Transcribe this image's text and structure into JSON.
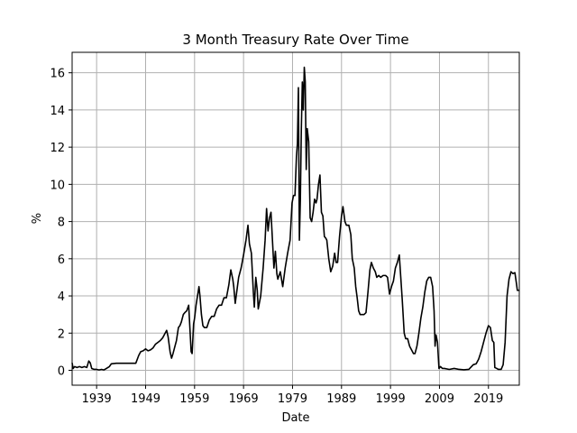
{
  "chart_data": {
    "type": "line",
    "title": "3 Month Treasury Rate Over Time",
    "xlabel": "Date",
    "ylabel": "%",
    "xlim": [
      1934,
      2025.3
    ],
    "ylim": [
      -0.8,
      17.1
    ],
    "x_ticks": [
      1939,
      1949,
      1959,
      1969,
      1979,
      1989,
      1999,
      2009,
      2019
    ],
    "y_ticks": [
      0,
      2,
      4,
      6,
      8,
      10,
      12,
      14,
      16
    ],
    "grid": true,
    "legend": "none",
    "line_color": "#000000",
    "series": [
      {
        "values": [
          [
            1934.0,
            0.4
          ],
          [
            1934.2,
            0.1
          ],
          [
            1934.5,
            0.2
          ],
          [
            1935.0,
            0.15
          ],
          [
            1935.5,
            0.2
          ],
          [
            1936.0,
            0.15
          ],
          [
            1936.5,
            0.2
          ],
          [
            1937.0,
            0.15
          ],
          [
            1937.4,
            0.5
          ],
          [
            1937.7,
            0.4
          ],
          [
            1938.0,
            0.1
          ],
          [
            1938.5,
            0.05
          ],
          [
            1939.0,
            0.05
          ],
          [
            1939.5,
            0.02
          ],
          [
            1940.0,
            0.05
          ],
          [
            1940.5,
            0.02
          ],
          [
            1941.0,
            0.1
          ],
          [
            1941.6,
            0.2
          ],
          [
            1942.0,
            0.35
          ],
          [
            1943.0,
            0.38
          ],
          [
            1944.0,
            0.38
          ],
          [
            1945.0,
            0.38
          ],
          [
            1946.0,
            0.38
          ],
          [
            1947.0,
            0.38
          ],
          [
            1947.6,
            0.8
          ],
          [
            1948.0,
            1.0
          ],
          [
            1948.5,
            1.05
          ],
          [
            1949.0,
            1.15
          ],
          [
            1949.5,
            1.05
          ],
          [
            1950.0,
            1.1
          ],
          [
            1950.5,
            1.2
          ],
          [
            1951.0,
            1.4
          ],
          [
            1951.5,
            1.5
          ],
          [
            1952.0,
            1.6
          ],
          [
            1952.5,
            1.75
          ],
          [
            1953.0,
            2.0
          ],
          [
            1953.3,
            2.15
          ],
          [
            1953.6,
            1.8
          ],
          [
            1954.0,
            1.0
          ],
          [
            1954.3,
            0.65
          ],
          [
            1954.6,
            0.9
          ],
          [
            1955.0,
            1.3
          ],
          [
            1955.3,
            1.6
          ],
          [
            1955.7,
            2.3
          ],
          [
            1956.0,
            2.4
          ],
          [
            1956.3,
            2.6
          ],
          [
            1956.7,
            3.0
          ],
          [
            1957.0,
            3.1
          ],
          [
            1957.4,
            3.2
          ],
          [
            1957.8,
            3.5
          ],
          [
            1958.0,
            2.5
          ],
          [
            1958.3,
            1.0
          ],
          [
            1958.5,
            0.9
          ],
          [
            1958.8,
            2.5
          ],
          [
            1959.0,
            2.8
          ],
          [
            1959.3,
            3.5
          ],
          [
            1959.6,
            4.0
          ],
          [
            1959.9,
            4.5
          ],
          [
            1960.1,
            4.0
          ],
          [
            1960.4,
            3.0
          ],
          [
            1960.7,
            2.4
          ],
          [
            1961.0,
            2.3
          ],
          [
            1961.5,
            2.3
          ],
          [
            1962.0,
            2.7
          ],
          [
            1962.5,
            2.9
          ],
          [
            1963.0,
            2.9
          ],
          [
            1963.5,
            3.3
          ],
          [
            1964.0,
            3.5
          ],
          [
            1964.5,
            3.5
          ],
          [
            1965.0,
            3.9
          ],
          [
            1965.5,
            3.9
          ],
          [
            1966.0,
            4.6
          ],
          [
            1966.4,
            5.4
          ],
          [
            1966.8,
            4.9
          ],
          [
            1967.0,
            4.5
          ],
          [
            1967.3,
            3.6
          ],
          [
            1967.7,
            4.4
          ],
          [
            1968.0,
            5.0
          ],
          [
            1968.5,
            5.5
          ],
          [
            1969.0,
            6.2
          ],
          [
            1969.5,
            7.0
          ],
          [
            1969.9,
            7.8
          ],
          [
            1970.2,
            6.8
          ],
          [
            1970.6,
            6.3
          ],
          [
            1971.0,
            4.2
          ],
          [
            1971.2,
            3.4
          ],
          [
            1971.5,
            5.0
          ],
          [
            1971.8,
            4.3
          ],
          [
            1972.0,
            3.3
          ],
          [
            1972.5,
            4.0
          ],
          [
            1973.0,
            5.5
          ],
          [
            1973.4,
            7.0
          ],
          [
            1973.7,
            8.7
          ],
          [
            1974.0,
            7.5
          ],
          [
            1974.3,
            8.2
          ],
          [
            1974.6,
            8.5
          ],
          [
            1974.9,
            7.0
          ],
          [
            1975.2,
            5.5
          ],
          [
            1975.5,
            6.4
          ],
          [
            1975.8,
            5.2
          ],
          [
            1976.0,
            4.9
          ],
          [
            1976.5,
            5.3
          ],
          [
            1977.0,
            4.5
          ],
          [
            1977.5,
            5.5
          ],
          [
            1978.0,
            6.3
          ],
          [
            1978.5,
            7.0
          ],
          [
            1978.9,
            9.0
          ],
          [
            1979.2,
            9.4
          ],
          [
            1979.5,
            9.4
          ],
          [
            1979.8,
            11.5
          ],
          [
            1980.0,
            12.2
          ],
          [
            1980.2,
            15.2
          ],
          [
            1980.4,
            7.0
          ],
          [
            1980.6,
            9.2
          ],
          [
            1980.8,
            13.0
          ],
          [
            1981.0,
            15.5
          ],
          [
            1981.2,
            14.0
          ],
          [
            1981.4,
            16.3
          ],
          [
            1981.6,
            15.5
          ],
          [
            1981.8,
            10.8
          ],
          [
            1982.0,
            13.0
          ],
          [
            1982.3,
            12.3
          ],
          [
            1982.6,
            8.2
          ],
          [
            1982.9,
            8.0
          ],
          [
            1983.2,
            8.5
          ],
          [
            1983.5,
            9.2
          ],
          [
            1983.8,
            9.0
          ],
          [
            1984.0,
            9.2
          ],
          [
            1984.3,
            10.0
          ],
          [
            1984.6,
            10.5
          ],
          [
            1984.9,
            8.5
          ],
          [
            1985.2,
            8.3
          ],
          [
            1985.5,
            7.2
          ],
          [
            1985.8,
            7.1
          ],
          [
            1986.0,
            7.0
          ],
          [
            1986.4,
            6.0
          ],
          [
            1986.8,
            5.3
          ],
          [
            1987.2,
            5.6
          ],
          [
            1987.6,
            6.3
          ],
          [
            1987.9,
            5.8
          ],
          [
            1988.2,
            5.8
          ],
          [
            1988.6,
            7.2
          ],
          [
            1989.0,
            8.3
          ],
          [
            1989.3,
            8.8
          ],
          [
            1989.7,
            8.0
          ],
          [
            1990.0,
            7.8
          ],
          [
            1990.5,
            7.8
          ],
          [
            1990.9,
            7.3
          ],
          [
            1991.2,
            6.0
          ],
          [
            1991.6,
            5.5
          ],
          [
            1991.9,
            4.5
          ],
          [
            1992.2,
            3.9
          ],
          [
            1992.5,
            3.2
          ],
          [
            1992.8,
            3.0
          ],
          [
            1993.2,
            3.0
          ],
          [
            1993.6,
            3.0
          ],
          [
            1994.0,
            3.1
          ],
          [
            1994.4,
            4.2
          ],
          [
            1994.8,
            5.4
          ],
          [
            1995.1,
            5.8
          ],
          [
            1995.5,
            5.5
          ],
          [
            1995.9,
            5.3
          ],
          [
            1996.2,
            5.0
          ],
          [
            1996.6,
            5.1
          ],
          [
            1997.0,
            5.0
          ],
          [
            1997.5,
            5.1
          ],
          [
            1998.0,
            5.1
          ],
          [
            1998.4,
            5.0
          ],
          [
            1998.8,
            4.1
          ],
          [
            1999.2,
            4.5
          ],
          [
            1999.6,
            4.8
          ],
          [
            2000.0,
            5.5
          ],
          [
            2000.4,
            5.8
          ],
          [
            2000.8,
            6.2
          ],
          [
            2001.1,
            5.0
          ],
          [
            2001.4,
            3.8
          ],
          [
            2001.8,
            2.0
          ],
          [
            2002.1,
            1.7
          ],
          [
            2002.5,
            1.7
          ],
          [
            2002.9,
            1.3
          ],
          [
            2003.3,
            1.1
          ],
          [
            2003.7,
            0.9
          ],
          [
            2004.0,
            0.9
          ],
          [
            2004.4,
            1.3
          ],
          [
            2004.8,
            2.0
          ],
          [
            2005.2,
            2.8
          ],
          [
            2005.6,
            3.4
          ],
          [
            2006.0,
            4.2
          ],
          [
            2006.4,
            4.8
          ],
          [
            2006.8,
            5.0
          ],
          [
            2007.2,
            5.0
          ],
          [
            2007.6,
            4.5
          ],
          [
            2007.9,
            3.2
          ],
          [
            2008.1,
            1.3
          ],
          [
            2008.3,
            1.9
          ],
          [
            2008.6,
            1.5
          ],
          [
            2008.9,
            0.1
          ],
          [
            2009.2,
            0.2
          ],
          [
            2009.6,
            0.1
          ],
          [
            2010.0,
            0.1
          ],
          [
            2011.0,
            0.05
          ],
          [
            2012.0,
            0.1
          ],
          [
            2013.0,
            0.05
          ],
          [
            2014.0,
            0.03
          ],
          [
            2015.0,
            0.05
          ],
          [
            2015.9,
            0.3
          ],
          [
            2016.5,
            0.35
          ],
          [
            2017.0,
            0.6
          ],
          [
            2017.5,
            1.0
          ],
          [
            2018.0,
            1.5
          ],
          [
            2018.5,
            2.0
          ],
          [
            2019.0,
            2.4
          ],
          [
            2019.4,
            2.3
          ],
          [
            2019.8,
            1.6
          ],
          [
            2020.1,
            1.5
          ],
          [
            2020.3,
            0.15
          ],
          [
            2020.7,
            0.1
          ],
          [
            2021.0,
            0.05
          ],
          [
            2021.6,
            0.05
          ],
          [
            2022.0,
            0.3
          ],
          [
            2022.4,
            1.5
          ],
          [
            2022.8,
            4.0
          ],
          [
            2023.2,
            4.9
          ],
          [
            2023.6,
            5.3
          ],
          [
            2024.0,
            5.2
          ],
          [
            2024.4,
            5.25
          ],
          [
            2024.7,
            4.7
          ],
          [
            2024.9,
            4.3
          ],
          [
            2025.3,
            4.3
          ]
        ]
      }
    ]
  }
}
